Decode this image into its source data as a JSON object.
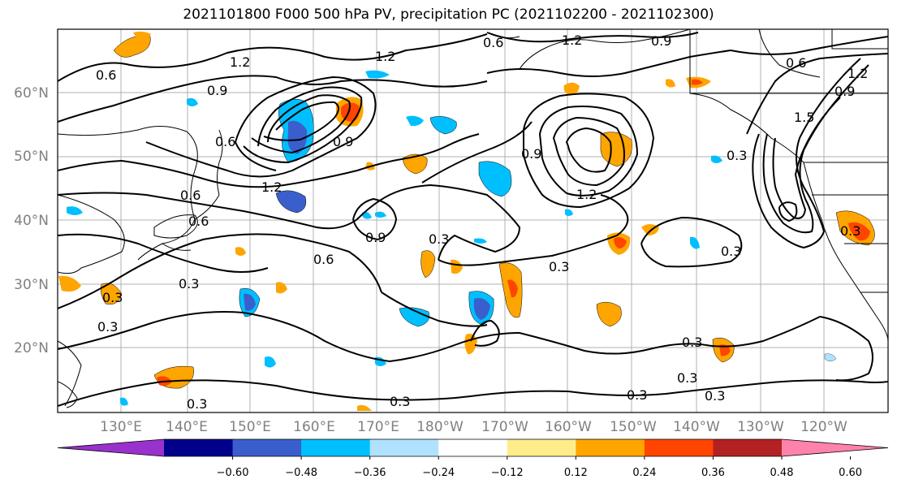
{
  "title": "2021101800 F000 500 hPa PV, precipitation PC (2021102200 - 2021102300)",
  "lat_labels": [
    "60°N",
    "50°N",
    "40°N",
    "30°N",
    "20°N"
  ],
  "lon_labels": [
    "130°E",
    "140°E",
    "150°E",
    "160°E",
    "170°E",
    "180°W",
    "170°W",
    "160°W",
    "150°W",
    "140°W",
    "130°W",
    "120°W"
  ],
  "contour_labels": [
    "0.3",
    "0.6",
    "0.9",
    "1.2",
    "1.5"
  ],
  "colorbar": {
    "tick_labels": [
      "−0.60",
      "−0.48",
      "−0.36",
      "−0.24",
      "−0.12",
      "0.12",
      "0.24",
      "0.36",
      "0.48",
      "0.60"
    ],
    "colors": [
      "#9932cc",
      "#00008b",
      "#3a5fcd",
      "#00bfff",
      "#b0e2ff",
      "#ffffff",
      "#ffec8b",
      "#ffa500",
      "#ff4500",
      "#b22222",
      "#ff82ab"
    ]
  },
  "colors": {
    "grid": "#b0b0b0",
    "contour": "#000000",
    "coastline": "#000000"
  }
}
